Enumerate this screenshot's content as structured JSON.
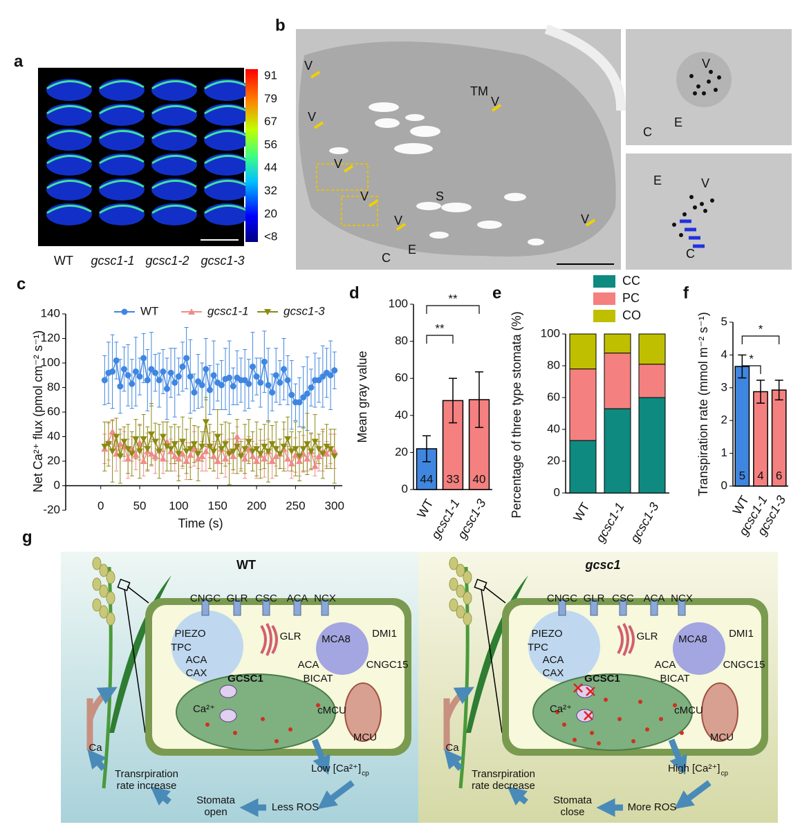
{
  "panel_labels": [
    "a",
    "b",
    "c",
    "d",
    "e",
    "f",
    "g"
  ],
  "panel_a": {
    "colorbar_ticks": [
      "91",
      "79",
      "67",
      "56",
      "44",
      "32",
      "20",
      "<8"
    ],
    "genotypes": [
      "WT",
      "gcsc1-1",
      "gcsc1-2",
      "gcsc1-3"
    ]
  },
  "panel_b": {
    "main_labels": [
      "V",
      "V",
      "V",
      "V",
      "V",
      "V",
      "V",
      "TM",
      "S",
      "C",
      "E"
    ],
    "inset_top": [
      "V",
      "C",
      "E"
    ],
    "inset_bottom": [
      "E",
      "V",
      "C"
    ]
  },
  "chart_data": [
    {
      "type": "line",
      "y_label": "Net Ca²⁺ flux (pmol cm⁻² s⁻¹)",
      "x_label": "Time (s)",
      "xlim": [
        -45,
        310
      ],
      "xticks": [
        0,
        50,
        100,
        150,
        200,
        250,
        300
      ],
      "ylim": [
        -20,
        140
      ],
      "yticks": [
        -20,
        0,
        20,
        40,
        60,
        80,
        100,
        120,
        140
      ],
      "x": [
        5,
        10,
        15,
        20,
        25,
        30,
        35,
        40,
        45,
        50,
        55,
        60,
        65,
        70,
        75,
        80,
        85,
        90,
        95,
        100,
        105,
        110,
        115,
        120,
        125,
        130,
        135,
        140,
        145,
        150,
        155,
        160,
        165,
        170,
        175,
        180,
        185,
        190,
        195,
        200,
        205,
        210,
        215,
        220,
        225,
        230,
        235,
        240,
        245,
        250,
        255,
        260,
        265,
        270,
        275,
        280,
        285,
        290,
        295,
        300
      ],
      "series": [
        {
          "name": "WT",
          "color": "#3f86e0",
          "marker": "circle",
          "values": [
            86,
            92,
            93,
            102,
            81,
            95,
            90,
            83,
            93,
            89,
            104,
            86,
            95,
            92,
            86,
            93,
            79,
            92,
            84,
            89,
            97,
            104,
            89,
            76,
            85,
            82,
            95,
            78,
            90,
            84,
            82,
            87,
            88,
            81,
            88,
            86,
            86,
            83,
            97,
            89,
            84,
            101,
            82,
            76,
            90,
            84,
            95,
            86,
            74,
            68,
            68,
            72,
            75,
            80,
            86,
            86,
            89,
            92,
            90,
            94
          ],
          "errors": [
            20,
            25,
            30,
            15,
            22,
            18,
            25,
            20,
            28,
            15,
            20,
            25,
            30,
            15,
            22,
            18,
            25,
            20,
            28,
            15,
            20,
            25,
            30,
            15,
            22,
            18,
            25,
            20,
            28,
            15,
            20,
            25,
            30,
            15,
            22,
            18,
            25,
            20,
            28,
            15,
            20,
            25,
            30,
            15,
            22,
            18,
            25,
            20,
            28,
            15,
            20,
            25,
            30,
            15,
            22,
            18,
            25,
            20,
            28,
            15
          ]
        },
        {
          "name": "gcsc1-1",
          "color": "#f08a8a",
          "marker": "triangle-up",
          "values": [
            30,
            36,
            44,
            26,
            34,
            32,
            22,
            30,
            25,
            35,
            20,
            28,
            26,
            24,
            30,
            22,
            36,
            28,
            24,
            22,
            26,
            20,
            25,
            30,
            22,
            24,
            28,
            33,
            24,
            20,
            30,
            22,
            28,
            24,
            40,
            26,
            22,
            30,
            24,
            20,
            25,
            22,
            28,
            20,
            24,
            26,
            30,
            22,
            18,
            25,
            20,
            26,
            22,
            28,
            16,
            24,
            28,
            26,
            30,
            28
          ],
          "errors": [
            12,
            15,
            10,
            14,
            8,
            12,
            16,
            10,
            12,
            14,
            12,
            15,
            10,
            14,
            8,
            12,
            16,
            10,
            12,
            14,
            12,
            15,
            10,
            14,
            8,
            12,
            16,
            10,
            12,
            14,
            12,
            15,
            10,
            14,
            8,
            12,
            16,
            10,
            12,
            14,
            12,
            15,
            10,
            14,
            8,
            12,
            16,
            10,
            12,
            14,
            12,
            15,
            10,
            14,
            8,
            12,
            16,
            10,
            12,
            14
          ]
        },
        {
          "name": "gcsc1-3",
          "color": "#8a8a10",
          "marker": "triangle-down",
          "values": [
            32,
            34,
            28,
            40,
            24,
            36,
            30,
            26,
            38,
            28,
            38,
            30,
            42,
            36,
            28,
            40,
            32,
            30,
            34,
            26,
            36,
            28,
            30,
            34,
            26,
            32,
            52,
            32,
            28,
            40,
            30,
            34,
            26,
            28,
            32,
            24,
            30,
            36,
            28,
            30,
            26,
            32,
            28,
            34,
            30,
            26,
            32,
            38,
            28,
            30,
            24,
            30,
            34,
            28,
            36,
            30,
            26,
            32,
            30,
            24
          ],
          "errors": [
            20,
            18,
            25,
            15,
            22,
            12,
            20,
            18,
            16,
            22,
            20,
            18,
            25,
            15,
            22,
            12,
            20,
            18,
            16,
            22,
            20,
            18,
            25,
            15,
            22,
            12,
            20,
            18,
            16,
            22,
            20,
            18,
            25,
            15,
            22,
            12,
            20,
            18,
            16,
            22,
            20,
            18,
            25,
            15,
            22,
            12,
            20,
            18,
            16,
            22,
            20,
            18,
            25,
            15,
            22,
            12,
            20,
            18,
            16,
            22
          ]
        }
      ]
    },
    {
      "type": "bar",
      "y_label": "Mean gray value",
      "categories": [
        "WT",
        "gcsc1-1",
        "gcsc1-3"
      ],
      "values": [
        22,
        48,
        48.5
      ],
      "errors": [
        7,
        12,
        15
      ],
      "colors": [
        "#3f86e0",
        "#f48080",
        "#f48080"
      ],
      "n": [
        44,
        33,
        40
      ],
      "significance": [
        "**",
        "**"
      ],
      "ylim": [
        0,
        100
      ],
      "yticks": [
        0,
        20,
        40,
        60,
        80,
        100
      ]
    },
    {
      "type": "stacked_bar",
      "y_label": "Percentage of three type stomata (%)",
      "categories": [
        "WT",
        "gcsc1-1",
        "gcsc1-3"
      ],
      "series": [
        {
          "name": "CC",
          "color": "#0e8a80",
          "values": [
            33,
            53,
            60
          ]
        },
        {
          "name": "PC",
          "color": "#f48080",
          "values": [
            45,
            35,
            21
          ]
        },
        {
          "name": "CO",
          "color": "#bfbf00",
          "values": [
            22,
            12,
            19
          ]
        }
      ],
      "ylim": [
        0,
        100
      ],
      "yticks": [
        0,
        20,
        40,
        60,
        80,
        100
      ]
    },
    {
      "type": "bar",
      "y_label": "Transpiration rate (mmol m⁻² s⁻¹)",
      "categories": [
        "WT",
        "gcsc1-1",
        "gcsc1-3"
      ],
      "values": [
        3.65,
        2.88,
        2.93
      ],
      "errors": [
        0.35,
        0.35,
        0.3
      ],
      "colors": [
        "#3f86e0",
        "#f48080",
        "#f48080"
      ],
      "n": [
        5,
        4,
        6
      ],
      "significance": [
        "*",
        "*"
      ],
      "ylim": [
        0,
        5
      ],
      "yticks": [
        0,
        1,
        2,
        3,
        4,
        5
      ]
    }
  ],
  "panel_g": {
    "left": {
      "title": "WT",
      "channels": [
        "CNGC",
        "GLR",
        "CSC",
        "ACA",
        "NCX"
      ],
      "vacuole": [
        "PIEZO",
        "TPC",
        "ACA",
        "CAX"
      ],
      "golgi": "GLR",
      "mca8": "MCA8",
      "dmi1": "DMI1",
      "aca": "ACA",
      "bicat": "BICAT",
      "cngc15": "CNGC15",
      "gcsc1": "GCSC1",
      "ca_ion": "Ca²⁺",
      "cmcu": "cMCU",
      "mcu": "MCU",
      "ca": "Ca",
      "transpiration": [
        "Transrpiration",
        "rate increase"
      ],
      "calcium": {
        "main": "Low [Ca²⁺]",
        "sub": "cp"
      },
      "stomata": [
        "Stomata",
        "open"
      ],
      "ros": "Less ROS"
    },
    "right": {
      "title": "gcsc1",
      "channels": [
        "CNGC",
        "GLR",
        "CSC",
        "ACA",
        "NCX"
      ],
      "vacuole": [
        "PIEZO",
        "TPC",
        "ACA",
        "CAX"
      ],
      "golgi": "GLR",
      "mca8": "MCA8",
      "dmi1": "DMI1",
      "aca": "ACA",
      "bicat": "BICAT",
      "cngc15": "CNGC15",
      "gcsc1": "GCSC1",
      "ca_ion": "Ca²⁺",
      "cmcu": "cMCU",
      "mcu": "MCU",
      "ca": "Ca",
      "transpiration": [
        "Transrpiration",
        "rate decrease"
      ],
      "calcium": {
        "main": "High [Ca²⁺]",
        "sub": "cp"
      },
      "stomata": [
        "Stomata",
        "close"
      ],
      "ros": "More ROS"
    }
  }
}
